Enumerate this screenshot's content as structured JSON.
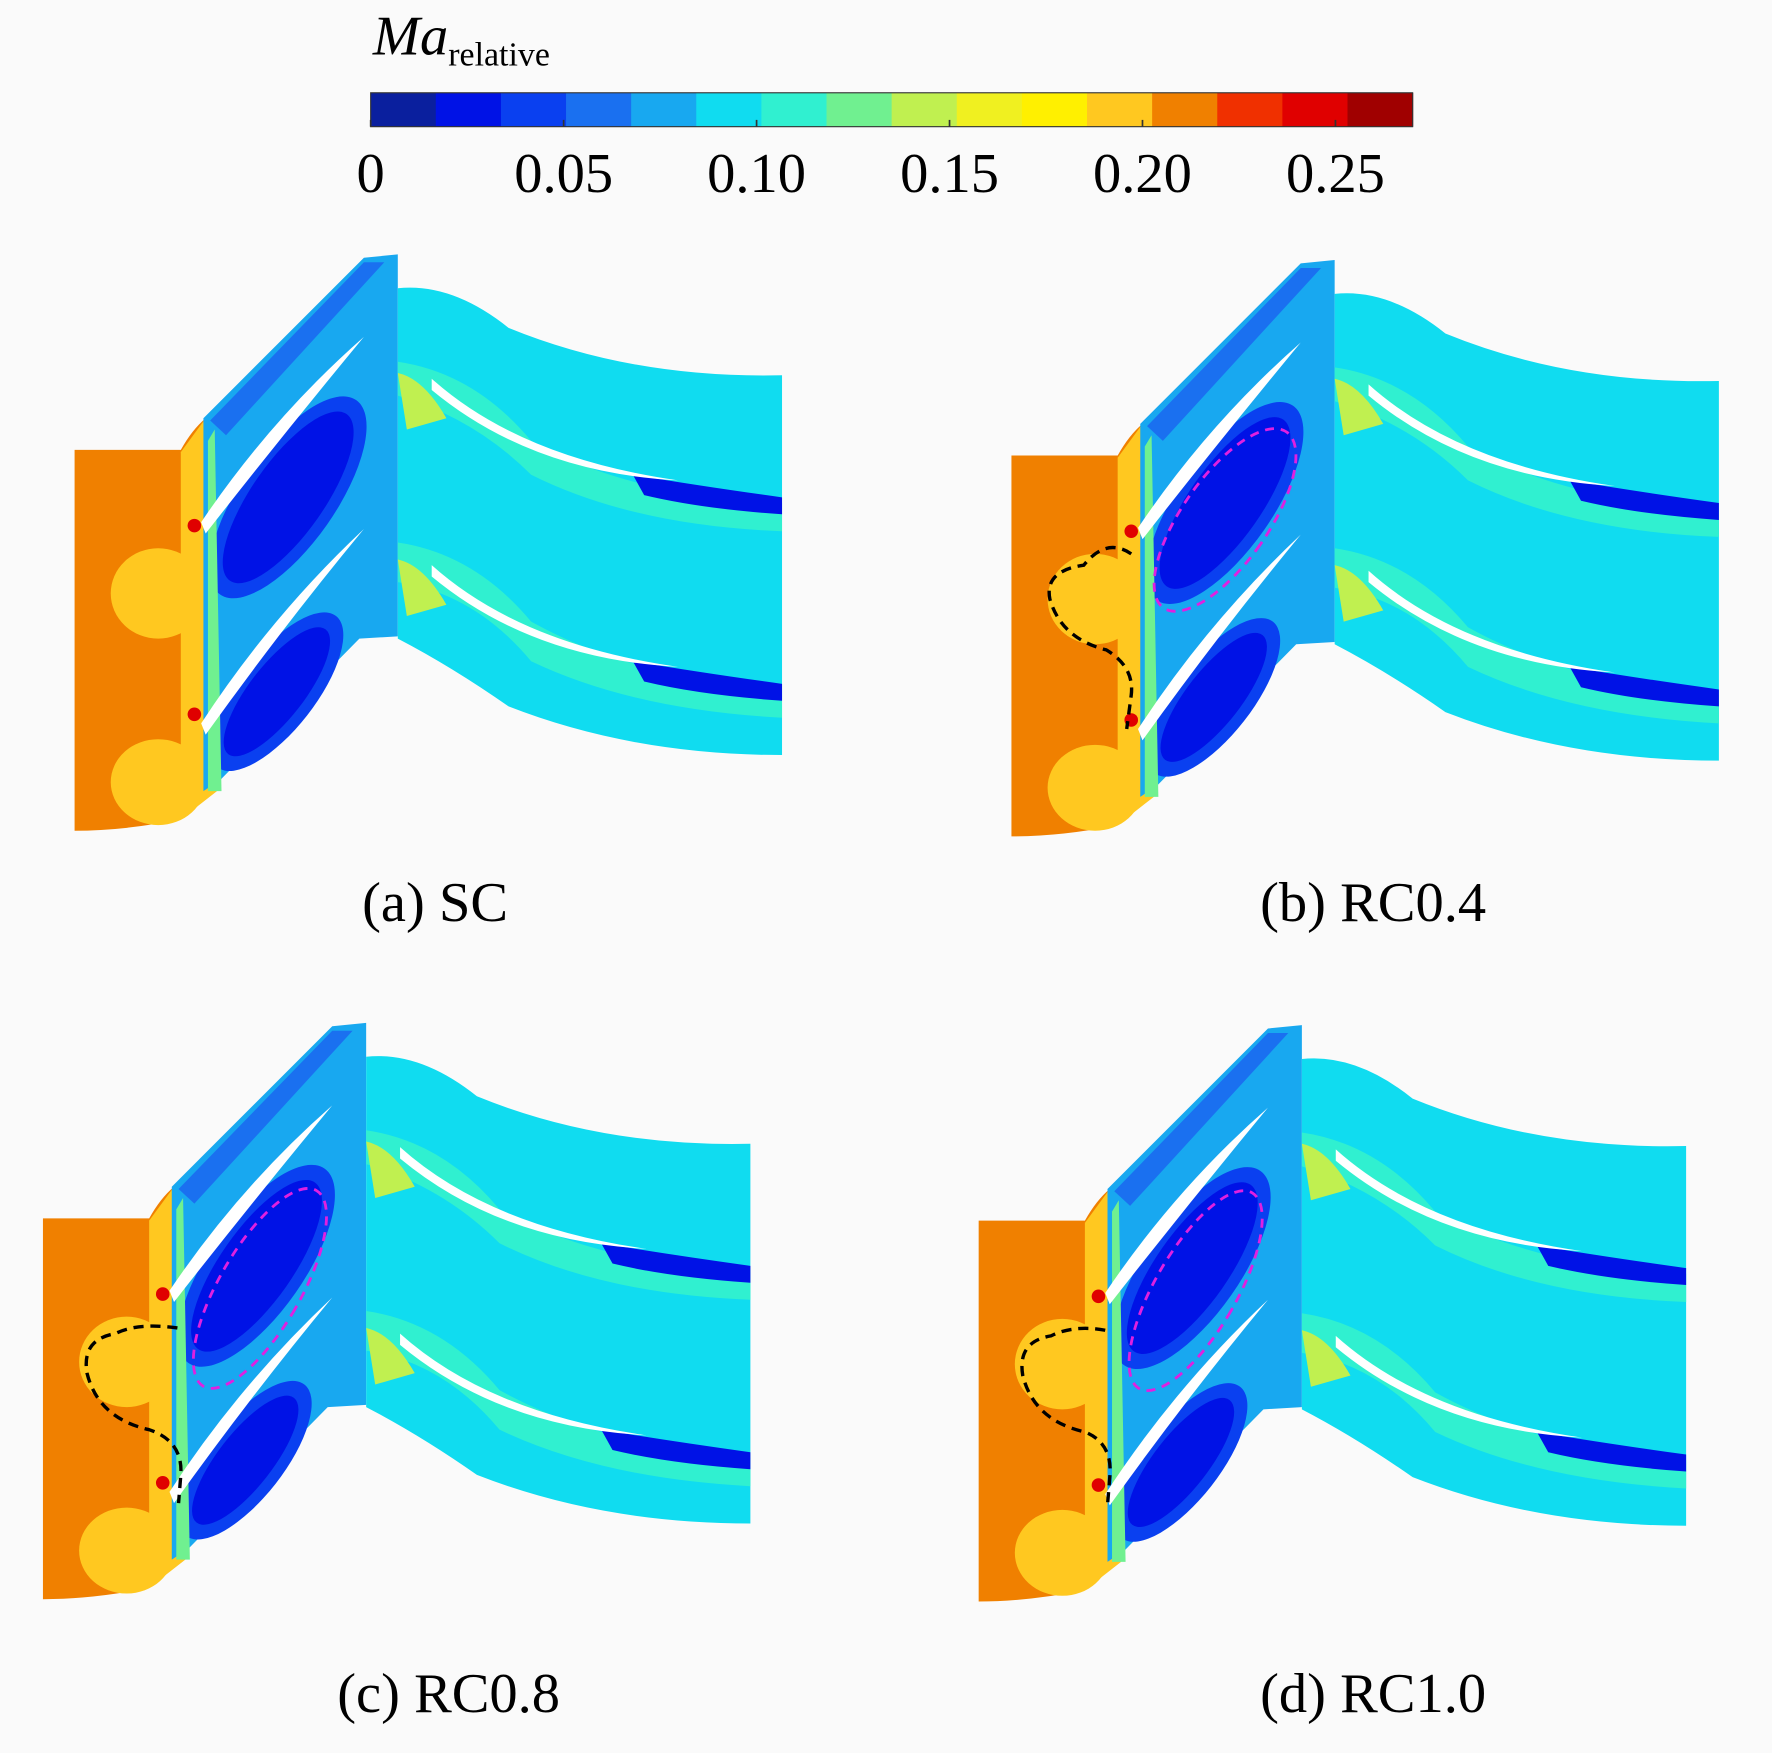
{
  "colorbar": {
    "title": "Ma",
    "subscript": "relative",
    "range": [
      0,
      0.27
    ],
    "ticks": [
      0,
      0.05,
      {
        "value": 0.1,
        "label": "0.10"
      },
      0.15,
      {
        "value": 0.2,
        "label": "0.20"
      },
      0.25
    ],
    "colors": [
      "#0a1f9e",
      "#0012e6",
      "#0a40f0",
      "#1a70f0",
      "#18a8f0",
      "#10dcf0",
      "#30f0d0",
      "#70f090",
      "#c0f050",
      "#f0f020",
      "#fff000",
      "#ffc820",
      "#f08000",
      "#f03000",
      "#e00000",
      "#a00000"
    ]
  },
  "panels": [
    {
      "label": "(a) SC"
    },
    {
      "label": "(b) RC0.4"
    },
    {
      "label": "(c) RC0.8"
    },
    {
      "label": "(d) RC1.0"
    }
  ]
}
